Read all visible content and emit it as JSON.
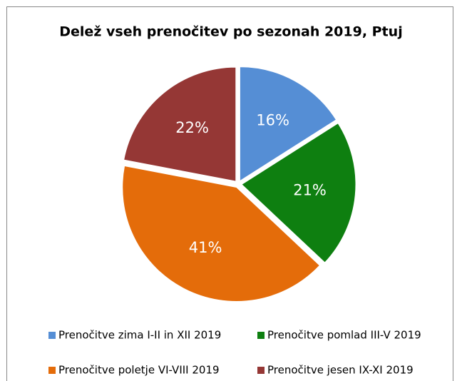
{
  "chart_data": {
    "type": "pie",
    "title": "Delež vseh prenočitev po sezonah 2019, Ptuj",
    "categories": [
      "Prenočitve zima I-II in XII 2019",
      "Prenočitve pomlad III-V 2019",
      "Prenočitve poletje VI-VIII 2019",
      "Prenočitve jesen IX-XI 2019"
    ],
    "values": [
      16,
      21,
      41,
      22
    ],
    "value_labels": [
      "16%",
      "21%",
      "41%",
      "22%"
    ],
    "colors": [
      "#558ed5",
      "#0e7f10",
      "#e46c0a",
      "#953735"
    ],
    "legend": "bottom"
  }
}
